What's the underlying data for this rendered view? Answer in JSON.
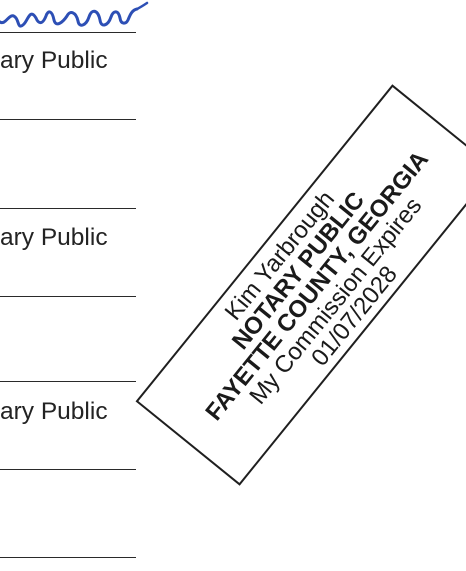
{
  "document": {
    "signature_owner": "Kim Yarbrough",
    "rows": [
      {
        "label": "ary Public"
      },
      {
        "label": "ary Public"
      },
      {
        "label": "ary Public"
      }
    ]
  },
  "stamp": {
    "name": "Kim Yarbrough",
    "title": "NOTARY PUBLIC",
    "county": "FAYETTE COUNTY, GEORGIA",
    "commission_label": "My Commission Expires",
    "expiration_date": "01/07/2028"
  },
  "colors": {
    "signature_ink": "#2d4fb5",
    "stamp_ink": "#1f1f1f",
    "line": "#2a2a2a"
  }
}
